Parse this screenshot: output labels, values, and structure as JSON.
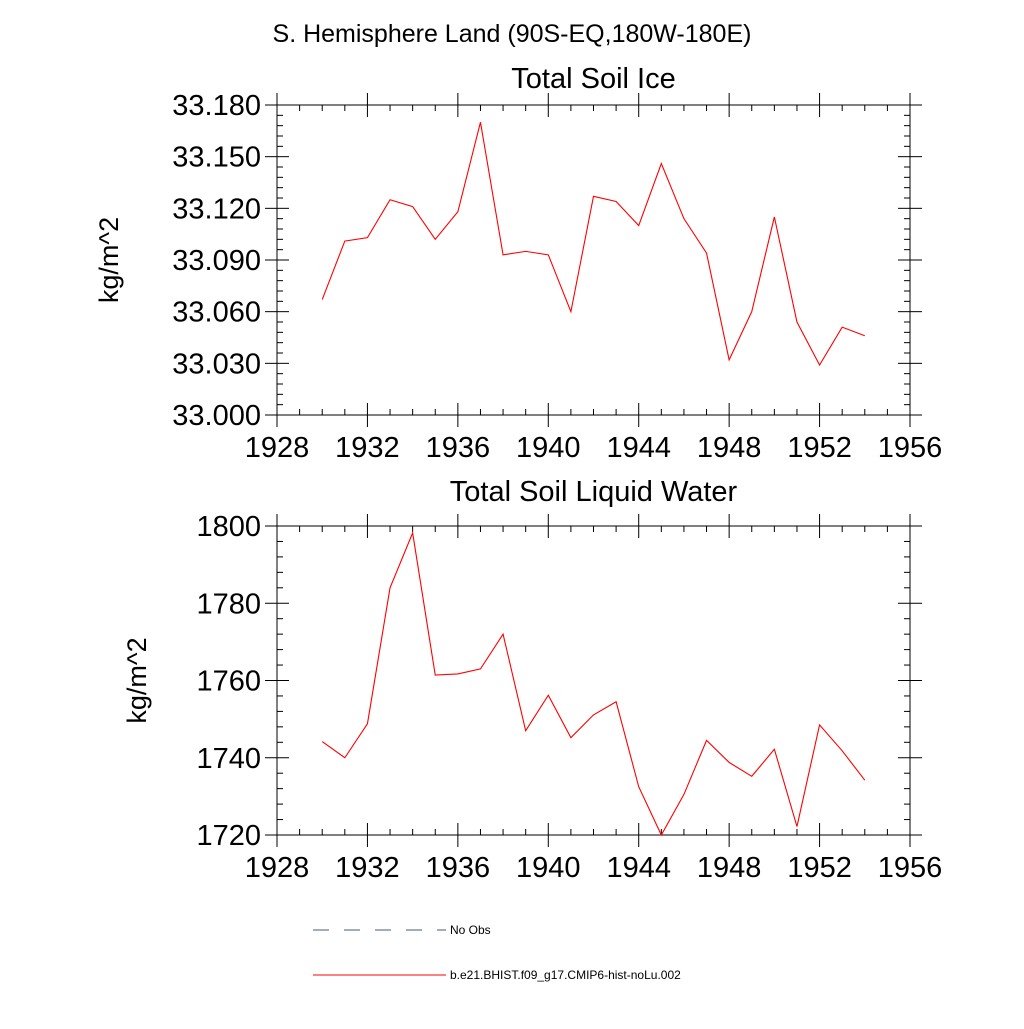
{
  "page": {
    "title": "S. Hemisphere Land (90S-EQ,180W-180E)"
  },
  "chart_data": [
    {
      "type": "line",
      "title": "Total Soil Ice",
      "xlabel": "",
      "ylabel": "kg/m^2",
      "xlim": [
        1928,
        1956
      ],
      "ylim": [
        33.0,
        33.18
      ],
      "x_ticks": [
        1928,
        1932,
        1936,
        1940,
        1944,
        1948,
        1952,
        1956
      ],
      "y_ticks": [
        "33.000",
        "33.030",
        "33.060",
        "33.090",
        "33.120",
        "33.150",
        "33.180"
      ],
      "grid": false,
      "series": [
        {
          "name": "b.e21.BHIST.f09_g17.CMIP6-hist-noLu.002",
          "color": "#ff0000",
          "x": [
            1930,
            1931,
            1932,
            1933,
            1934,
            1935,
            1936,
            1937,
            1938,
            1939,
            1940,
            1941,
            1942,
            1943,
            1944,
            1945,
            1946,
            1947,
            1948,
            1949,
            1950,
            1951,
            1952,
            1953,
            1954
          ],
          "y": [
            33.067,
            33.101,
            33.103,
            33.125,
            33.121,
            33.102,
            33.118,
            33.17,
            33.093,
            33.095,
            33.093,
            33.06,
            33.127,
            33.124,
            33.11,
            33.146,
            33.114,
            33.094,
            33.032,
            33.06,
            33.115,
            33.054,
            33.029,
            33.051,
            33.046
          ]
        }
      ]
    },
    {
      "type": "line",
      "title": "Total Soil Liquid Water",
      "xlabel": "",
      "ylabel": "kg/m^2",
      "xlim": [
        1928,
        1956
      ],
      "ylim": [
        1720,
        1800
      ],
      "x_ticks": [
        1928,
        1932,
        1936,
        1940,
        1944,
        1948,
        1952,
        1956
      ],
      "y_ticks": [
        "1720",
        "1740",
        "1760",
        "1780",
        "1800"
      ],
      "grid": false,
      "series": [
        {
          "name": "b.e21.BHIST.f09_g17.CMIP6-hist-noLu.002",
          "color": "#ff0000",
          "x": [
            1930,
            1931,
            1932,
            1933,
            1934,
            1935,
            1936,
            1937,
            1938,
            1939,
            1940,
            1941,
            1942,
            1943,
            1944,
            1945,
            1946,
            1947,
            1948,
            1949,
            1950,
            1951,
            1952,
            1953,
            1954
          ],
          "y": [
            1744.2,
            1740.0,
            1748.8,
            1784.0,
            1798.2,
            1761.4,
            1761.7,
            1763.0,
            1772.0,
            1747.0,
            1756.2,
            1745.2,
            1751.1,
            1754.5,
            1732.5,
            1720.0,
            1730.5,
            1744.5,
            1738.8,
            1735.2,
            1742.2,
            1722.2,
            1748.5,
            1741.8,
            1734.2
          ]
        }
      ]
    }
  ],
  "legend": {
    "items": [
      {
        "label": "No Obs",
        "color": "#4a5a7a",
        "dash": "dashed"
      },
      {
        "label": "b.e21.BHIST.f09_g17.CMIP6-hist-noLu.002",
        "color": "#ff0000",
        "dash": "solid"
      }
    ]
  }
}
